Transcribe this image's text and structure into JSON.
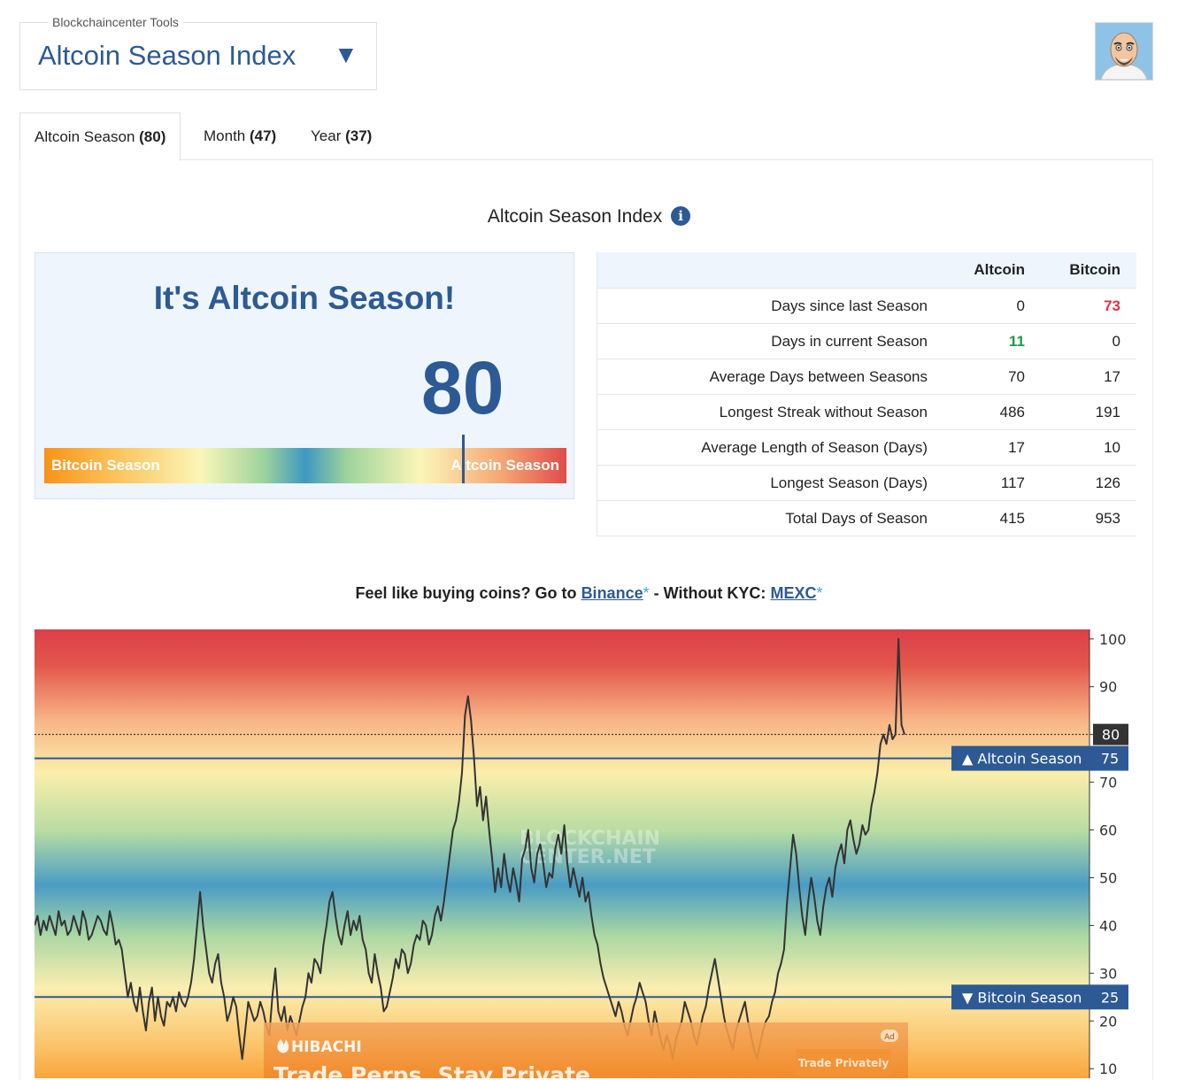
{
  "header": {
    "tool_legend": "Blockchaincenter Tools",
    "tool_title": "Altcoin Season Index",
    "dropdown_arrow": "▼",
    "avatar": "cartoon-avatar-icon"
  },
  "tabs": [
    {
      "label": "Altcoin Season",
      "count": "(80)"
    },
    {
      "label": "Month",
      "count": "(47)"
    },
    {
      "label": "Year",
      "count": "(37)"
    }
  ],
  "section_title": "Altcoin Season Index",
  "info_icon": "i",
  "gauge": {
    "headline": "It's Altcoin Season!",
    "value": "80",
    "level": 80,
    "left_label": "Bitcoin Season",
    "right_label": "Altcoin Season"
  },
  "stats": {
    "headers": [
      "",
      "Altcoin",
      "Bitcoin"
    ],
    "rows": [
      {
        "label": "Days since last Season",
        "altcoin": "0",
        "bitcoin": "73"
      },
      {
        "label": "Days in current Season",
        "altcoin": "11",
        "bitcoin": "0"
      },
      {
        "label": "Average Days between Seasons",
        "altcoin": "70",
        "bitcoin": "17"
      },
      {
        "label": "Longest Streak without Season",
        "altcoin": "486",
        "bitcoin": "191"
      },
      {
        "label": "Average Length of Season (Days)",
        "altcoin": "17",
        "bitcoin": "10"
      },
      {
        "label": "Longest Season (Days)",
        "altcoin": "117",
        "bitcoin": "126"
      },
      {
        "label": "Total Days of Season",
        "altcoin": "415",
        "bitcoin": "953"
      }
    ],
    "highlight_red": "#e0304a",
    "highlight_green": "#1a9a4a"
  },
  "promo": {
    "text1": "Feel like buying coins? Go to",
    "link1": "Binance",
    "text2": "- Without KYC:",
    "link2": "MEXC",
    "star": "*"
  },
  "chart_data": {
    "type": "line",
    "y_ticks": [
      10,
      20,
      30,
      40,
      50,
      60,
      70,
      80,
      90,
      100
    ],
    "ylim": [
      8,
      102
    ],
    "current_value": 80,
    "current_label": "80",
    "thresholds": [
      {
        "label": "▲ Altcoin Season",
        "value": 75,
        "value_label": "75"
      },
      {
        "label": "▼ Bitcoin Season",
        "value": 25,
        "value_label": "25"
      }
    ],
    "watermark": [
      "BLOCKCHAIN",
      "CENTER.NET"
    ],
    "series": [
      {
        "values": [
          40,
          42,
          38,
          41,
          39,
          42,
          40,
          38,
          43,
          40,
          41,
          38,
          39,
          42,
          40,
          38,
          43,
          41,
          37,
          38,
          40,
          42,
          41,
          39,
          38,
          43,
          40,
          36,
          37,
          35,
          30,
          25,
          28,
          24,
          22,
          27,
          22,
          18,
          24,
          27,
          20,
          25,
          21,
          19,
          24,
          23,
          25,
          22,
          26,
          24,
          23,
          25,
          28,
          33,
          40,
          47,
          40,
          35,
          30,
          28,
          32,
          34,
          28,
          25,
          20,
          22,
          25,
          23,
          17,
          12,
          18,
          24,
          22,
          20,
          21,
          24,
          22,
          19,
          17,
          25,
          31,
          22,
          20,
          23,
          18,
          21,
          19,
          17,
          20,
          23,
          25,
          30,
          28,
          33,
          32,
          30,
          36,
          40,
          45,
          47,
          42,
          38,
          36,
          40,
          43,
          38,
          41,
          39,
          42,
          37,
          35,
          30,
          28,
          34,
          30,
          27,
          22,
          23,
          26,
          29,
          33,
          31,
          35,
          34,
          30,
          32,
          36,
          38,
          37,
          41,
          40,
          36,
          38,
          42,
          44,
          41,
          45,
          50,
          55,
          60,
          62,
          66,
          72,
          84,
          88,
          83,
          75,
          65,
          69,
          62,
          67,
          60,
          54,
          47,
          52,
          48,
          55,
          50,
          47,
          52,
          49,
          45,
          54,
          56,
          60,
          52,
          49,
          55,
          57,
          53,
          48,
          51,
          50,
          56,
          59,
          55,
          61,
          53,
          48,
          52,
          49,
          46,
          50,
          45,
          47,
          42,
          38,
          36,
          32,
          29,
          27,
          25,
          23,
          21,
          24,
          22,
          19,
          17,
          20,
          23,
          25,
          28,
          26,
          24,
          20,
          17,
          22,
          19,
          16,
          14,
          17,
          15,
          12,
          16,
          18,
          20,
          24,
          22,
          20,
          17,
          15,
          18,
          21,
          23,
          27,
          30,
          33,
          29,
          25,
          21,
          18,
          16,
          14,
          18,
          20,
          22,
          24,
          20,
          17,
          14,
          12,
          15,
          18,
          20,
          21,
          24,
          26,
          30,
          32,
          35,
          45,
          52,
          59,
          55,
          48,
          42,
          38,
          45,
          50,
          46,
          41,
          38,
          44,
          48,
          50,
          46,
          52,
          55,
          57,
          53,
          60,
          62,
          58,
          55,
          57,
          61,
          59,
          60,
          65,
          68,
          72,
          78,
          80,
          78,
          82,
          79,
          80,
          100,
          82,
          80
        ]
      }
    ]
  },
  "ad": {
    "brand": "HIBACHI",
    "tagline": "Trade Perps. Stay Private",
    "button": "Trade Privately",
    "badge": "Ad"
  }
}
